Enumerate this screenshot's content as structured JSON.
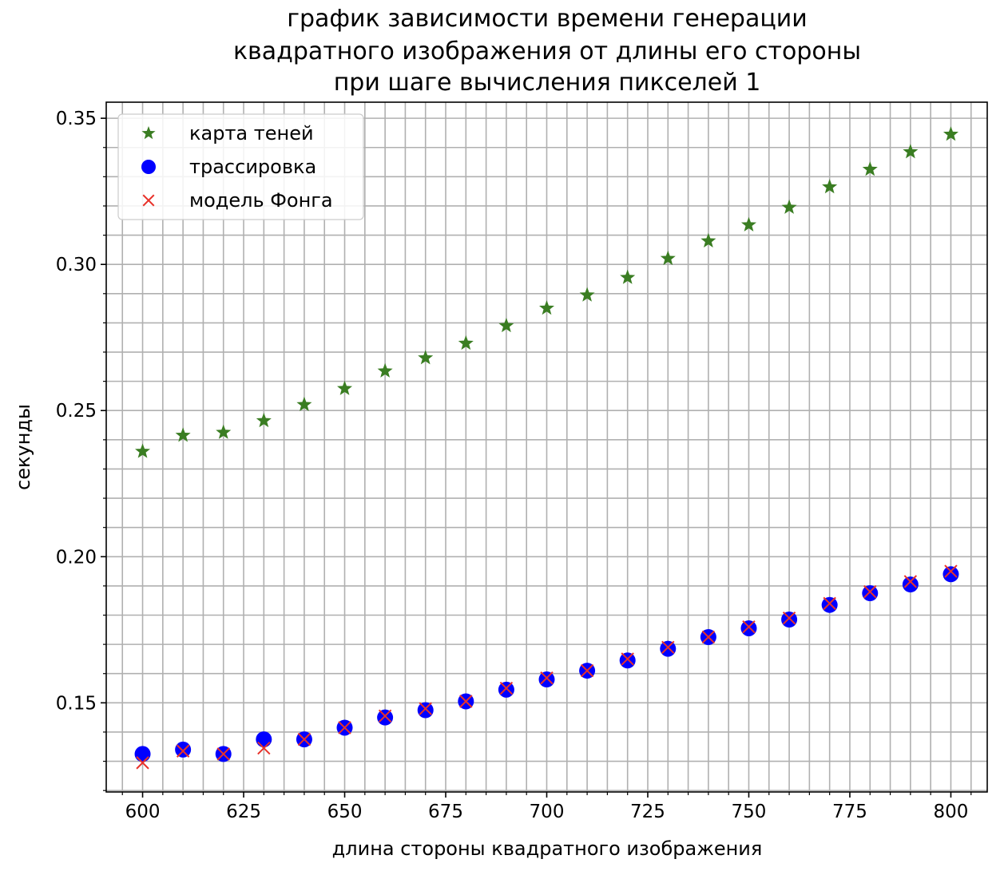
{
  "chart_data": {
    "type": "scatter",
    "title_lines": [
      "график зависимости времени генерации",
      "квадратного изображения от длины его стороны",
      "при шаге вычисления пикселей 1"
    ],
    "xlabel": "длина стороны квадратного изображения",
    "ylabel": "секунды",
    "xlim": [
      591,
      809
    ],
    "ylim": [
      0.1195,
      0.3555
    ],
    "x_ticks": [
      600,
      625,
      650,
      675,
      700,
      725,
      750,
      775,
      800
    ],
    "x_tick_labels": [
      "600",
      "625",
      "650",
      "675",
      "700",
      "725",
      "750",
      "775",
      "800"
    ],
    "y_ticks": [
      0.15,
      0.2,
      0.25,
      0.3,
      0.35
    ],
    "y_tick_labels": [
      "0.15",
      "0.20",
      "0.25",
      "0.30",
      "0.35"
    ],
    "x_minor_step": 5,
    "y_minor_step": 0.01,
    "grid": true,
    "legend_position": "top-left",
    "x": [
      600,
      610,
      620,
      630,
      640,
      650,
      660,
      670,
      680,
      690,
      700,
      710,
      720,
      730,
      740,
      750,
      760,
      770,
      780,
      790,
      800
    ],
    "series": [
      {
        "name": "карта теней",
        "marker": "star",
        "color": "#3a7d22",
        "values": [
          0.236,
          0.2415,
          0.2425,
          0.2465,
          0.252,
          0.2575,
          0.2635,
          0.268,
          0.273,
          0.279,
          0.285,
          0.2895,
          0.2955,
          0.302,
          0.308,
          0.3135,
          0.3195,
          0.3265,
          0.3325,
          0.3385,
          0.3445
        ]
      },
      {
        "name": "трассировка",
        "marker": "circle",
        "color": "#0000ff",
        "values": [
          0.1325,
          0.134,
          0.1325,
          0.1375,
          0.1375,
          0.1415,
          0.145,
          0.1475,
          0.1505,
          0.1545,
          0.158,
          0.161,
          0.1645,
          0.1685,
          0.1725,
          0.1755,
          0.1785,
          0.1835,
          0.1875,
          0.1905,
          0.194
        ]
      },
      {
        "name": "модель Фонга",
        "marker": "x",
        "color": "#e8322a",
        "values": [
          0.1295,
          0.1335,
          0.1325,
          0.1345,
          0.1375,
          0.1415,
          0.1455,
          0.148,
          0.1505,
          0.155,
          0.1585,
          0.161,
          0.165,
          0.169,
          0.1725,
          0.176,
          0.179,
          0.184,
          0.188,
          0.1915,
          0.195
        ]
      }
    ]
  }
}
